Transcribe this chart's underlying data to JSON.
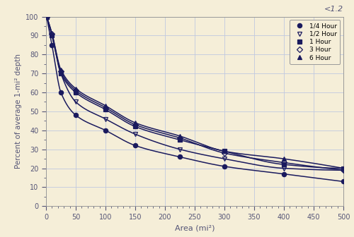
{
  "title_annotation": "<1.2",
  "xlabel": "Area (mi²)",
  "ylabel": "Percent of average 1-mi² depth",
  "background_color": "#f5eed8",
  "plot_bg_color": "#f5eed8",
  "grid_color": "#c0c8e0",
  "line_color": "#1a1a5e",
  "text_color": "#555577",
  "xlim": [
    0,
    500
  ],
  "ylim": [
    0,
    100
  ],
  "xticks": [
    0,
    50,
    100,
    150,
    200,
    250,
    300,
    350,
    400,
    450,
    500
  ],
  "yticks": [
    0,
    10,
    20,
    30,
    40,
    50,
    60,
    70,
    80,
    90,
    100
  ],
  "series": [
    {
      "label": "1/4 Hour",
      "marker": "o",
      "marker_fill": "#1a1a5e",
      "x": [
        1,
        10,
        25,
        50,
        100,
        150,
        225,
        300,
        400,
        500
      ],
      "y": [
        100,
        85,
        60,
        48,
        40,
        32,
        26,
        21,
        17,
        13
      ]
    },
    {
      "label": "1/2 Hour",
      "marker": "v",
      "marker_fill": "none",
      "x": [
        1,
        10,
        25,
        50,
        100,
        150,
        225,
        300,
        400,
        500
      ],
      "y": [
        100,
        90,
        70,
        55,
        46,
        38,
        30,
        25,
        20,
        19
      ]
    },
    {
      "label": "1 Hour",
      "marker": "s",
      "marker_fill": "#1a1a5e",
      "x": [
        1,
        10,
        25,
        50,
        100,
        150,
        225,
        300,
        400,
        500
      ],
      "y": [
        100,
        90,
        70,
        60,
        51,
        42,
        35,
        29,
        22,
        20
      ]
    },
    {
      "label": "3 Hour",
      "marker": "D",
      "marker_fill": "none",
      "x": [
        1,
        10,
        25,
        50,
        100,
        150,
        225,
        300,
        400,
        500
      ],
      "y": [
        100,
        91,
        71,
        61,
        52,
        43,
        36,
        28,
        23,
        19
      ]
    },
    {
      "label": "6 Hour",
      "marker": "^",
      "marker_fill": "#1a1a5e",
      "x": [
        1,
        10,
        25,
        50,
        100,
        150,
        225,
        300,
        400,
        500
      ],
      "y": [
        100,
        91,
        72,
        62,
        53,
        44,
        37,
        29,
        25,
        20
      ]
    }
  ]
}
